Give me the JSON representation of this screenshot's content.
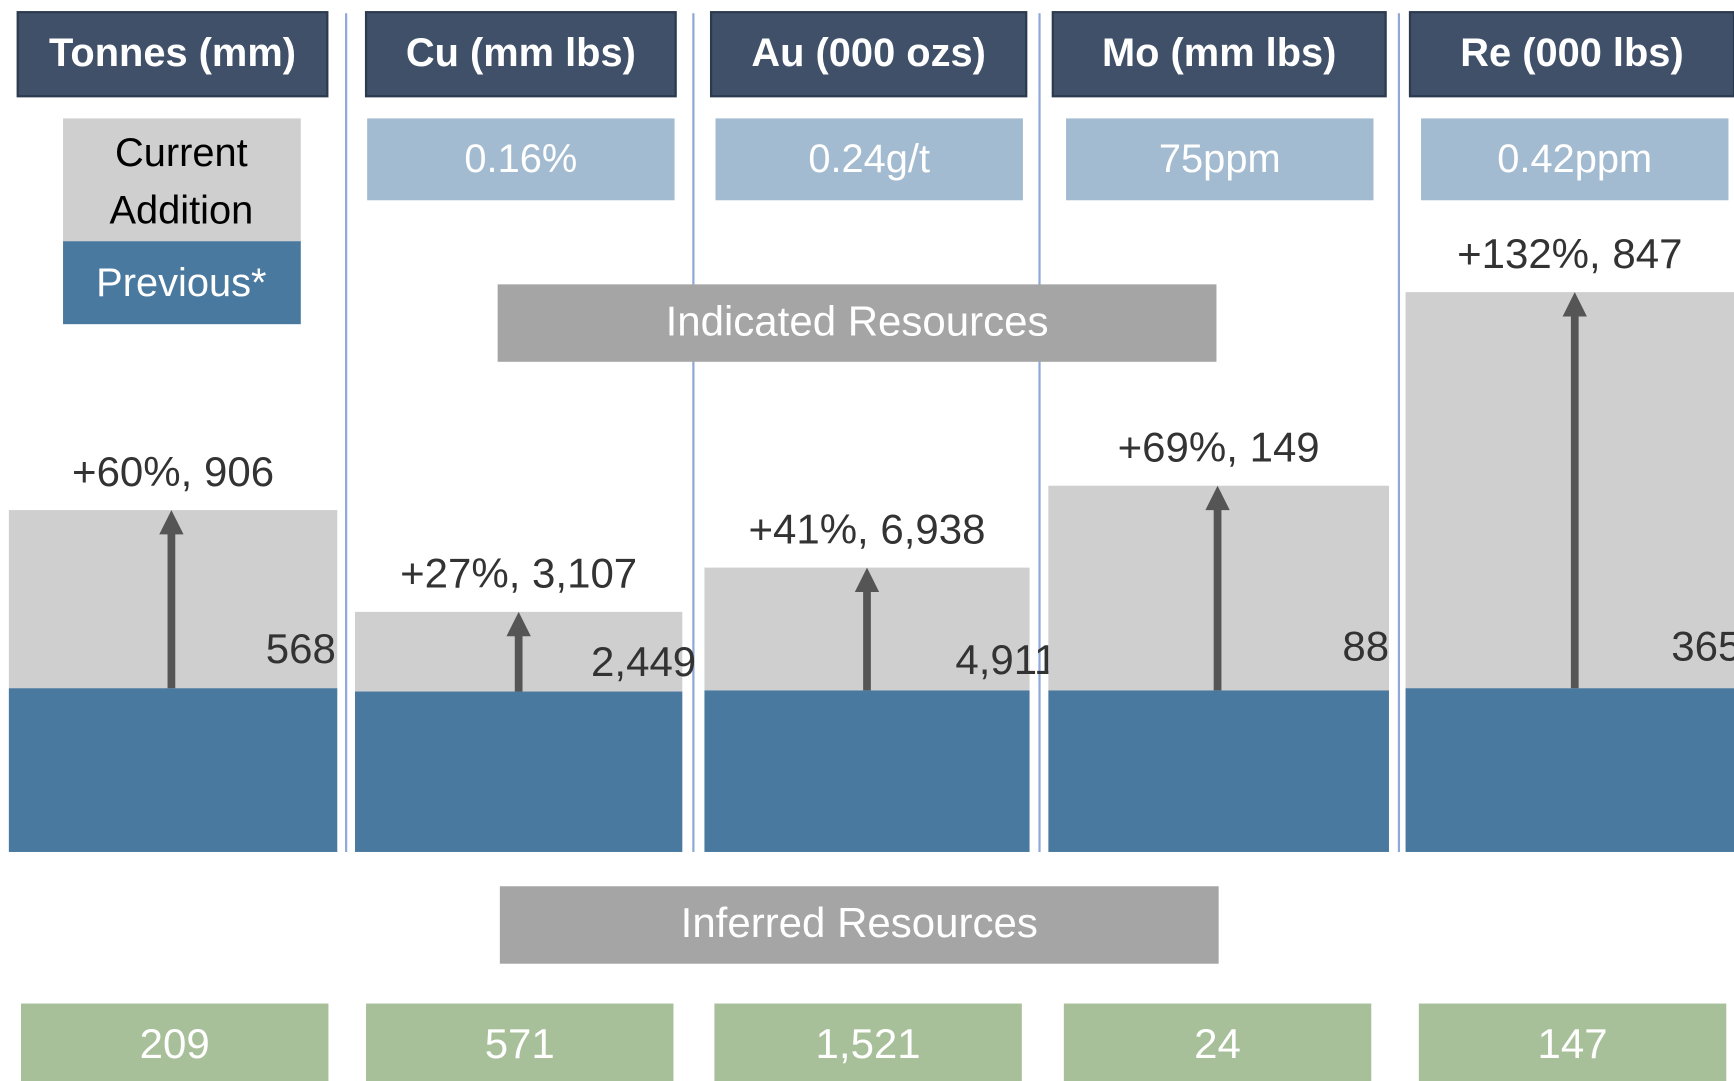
{
  "legend": {
    "current": "Current Addition",
    "previous": "Previous*"
  },
  "banners": {
    "indicated": "Indicated Resources",
    "inferred": "Inferred Resources"
  },
  "columns": [
    {
      "header": "Tonnes (mm)",
      "grade": null,
      "change": "+60%, 906",
      "addition": "568",
      "inferred": "209"
    },
    {
      "header": "Cu (mm lbs)",
      "grade": "0.16%",
      "change": "+27%, 3,107",
      "addition": "2,449",
      "inferred": "571"
    },
    {
      "header": "Au (000 ozs)",
      "grade": "0.24g/t",
      "change": "+41%, 6,938",
      "addition": "4,911",
      "inferred": "1,521"
    },
    {
      "header": "Mo (mm lbs)",
      "grade": "75ppm",
      "change": "+69%, 149",
      "addition": "88",
      "inferred": "24"
    },
    {
      "header": "Re (000 lbs)",
      "grade": "0.42ppm",
      "change": "+132%, 847",
      "addition": "365",
      "inferred": "147"
    }
  ]
}
